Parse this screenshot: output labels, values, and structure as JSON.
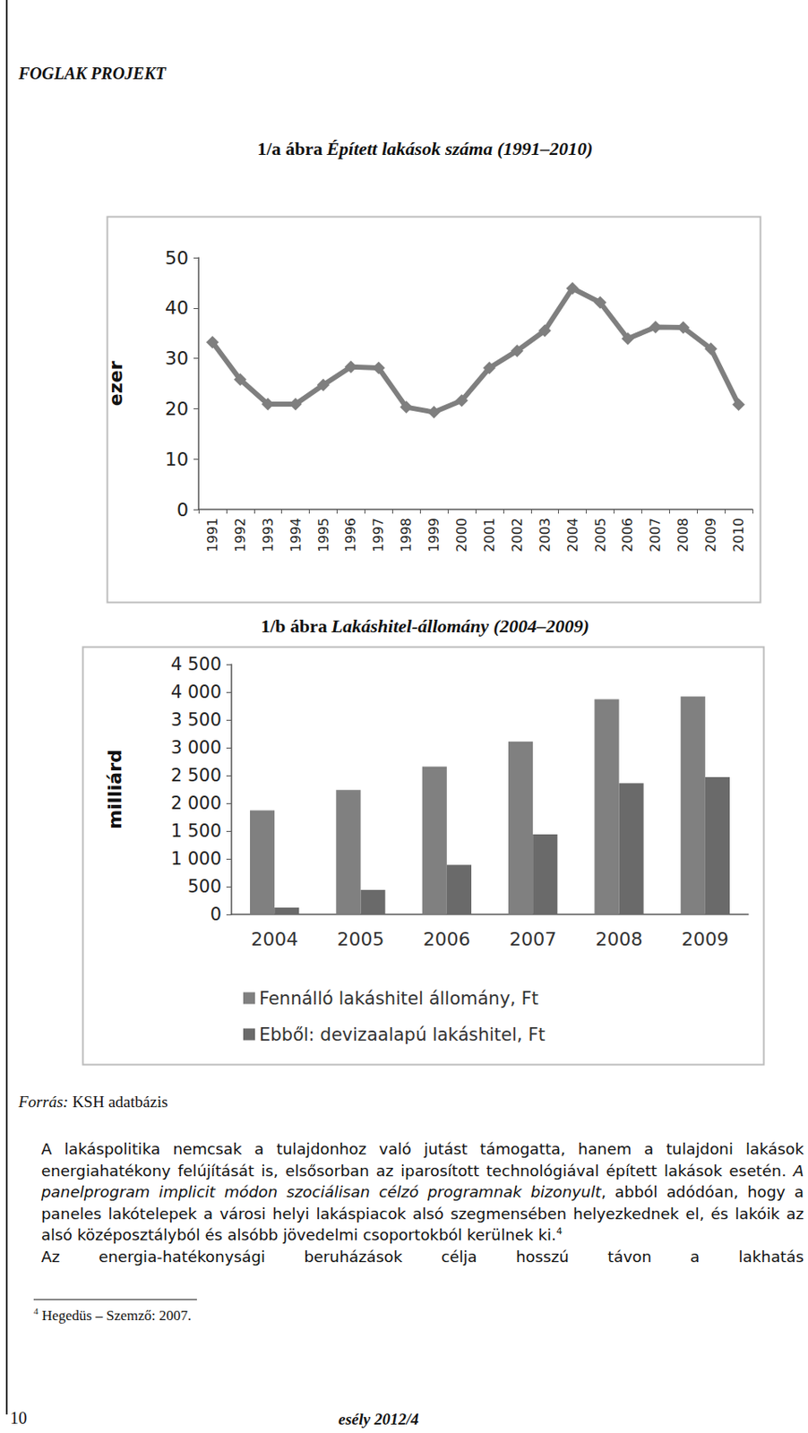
{
  "chart_data": [
    {
      "type": "line",
      "figure_label": "1/a ábra",
      "title": "Épített lakások száma (1991–2010)",
      "ylabel": "ezer",
      "categories": [
        "1991",
        "1992",
        "1993",
        "1994",
        "1995",
        "1996",
        "1997",
        "1998",
        "1999",
        "2000",
        "2001",
        "2002",
        "2003",
        "2004",
        "2005",
        "2006",
        "2007",
        "2008",
        "2009",
        "2010"
      ],
      "values": [
        33.2,
        25.8,
        20.9,
        20.9,
        24.7,
        28.3,
        28.1,
        20.3,
        19.3,
        21.6,
        28.1,
        31.5,
        35.5,
        43.9,
        41.1,
        33.9,
        36.2,
        36.1,
        31.9,
        20.8
      ],
      "color": "#7f7f7f",
      "marker": "diamond",
      "ylim": [
        0,
        50
      ],
      "yticks": [
        0,
        10,
        20,
        30,
        40,
        50
      ],
      "grid": false
    },
    {
      "type": "bar",
      "figure_label": "1/b ábra",
      "title": "Lakáshitel-állomány (2004–2009)",
      "ylabel": "milliárd",
      "categories": [
        "2004",
        "2005",
        "2006",
        "2007",
        "2008",
        "2009"
      ],
      "series": [
        {
          "name": "Fennálló lakáshitel állomány, Ft",
          "color": "#808080",
          "values": [
            1870,
            2240,
            2660,
            3110,
            3870,
            3920
          ]
        },
        {
          "name": "Ebből: devizaalapú lakáshitel, Ft",
          "color": "#6a6a6a",
          "values": [
            120,
            440,
            890,
            1440,
            2360,
            2470
          ]
        }
      ],
      "ylim": [
        0,
        4500
      ],
      "yticks": [
        0,
        500,
        {
          "value": 1000,
          "label": "1 000"
        },
        {
          "value": 1500,
          "label": "1 500"
        },
        {
          "value": 2000,
          "label": "2 000"
        },
        {
          "value": 2500,
          "label": "2 500"
        },
        {
          "value": 3000,
          "label": "3 000"
        },
        {
          "value": 3500,
          "label": "3 500"
        },
        {
          "value": 4000,
          "label": "4 000"
        },
        {
          "value": 4500,
          "label": "4 500"
        }
      ],
      "legend": "bottom",
      "grid": false
    }
  ],
  "document": {
    "header": "FOGLAK PROJEKT",
    "source": {
      "label": "Forrás:",
      "text": " KSH adatbázis"
    },
    "paragraphs": [
      [
        {
          "text": "A lakáspolitika nemcsak a tulajdonhoz való jutást támogatta, hanem a tulajdoni lakások energiahatékony felújítását is, elsősorban az iparosított technológiával épített lakások esetén. "
        },
        {
          "text": "A panelprogram implicit módon szociálisan célzó programnak bizonyult",
          "style": "italic"
        },
        {
          "text": ", abból adódóan, hogy a paneles lakótelepek a városi helyi lakáspiacok alsó szegmensében helyezkednek el, és lakóik az alsó középosztályból és alsóbb jövedelmi csoportokból kerülnek ki."
        },
        {
          "text": "4",
          "style": "sup"
        }
      ],
      [
        {
          "text": "Az energia-hatékonysági beruházások célja hosszú távon a lakhatás"
        }
      ]
    ],
    "footnote": {
      "mark": "4",
      "text": " Hegedüs – Szemző: 2007."
    },
    "page_number": "10",
    "journal": "esély 2012/4"
  }
}
